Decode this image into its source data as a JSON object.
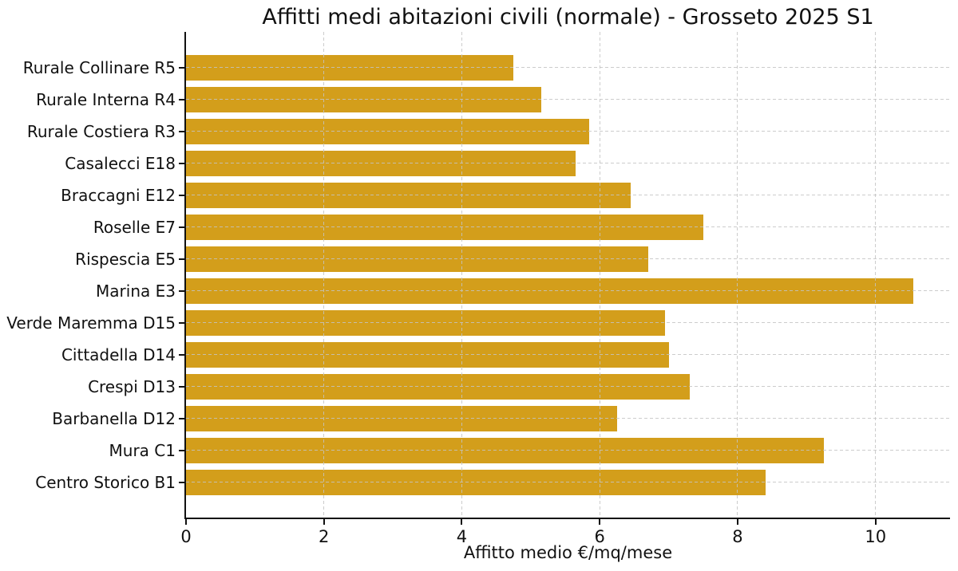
{
  "figure": {
    "background": "#ffffff"
  },
  "chart_data": {
    "type": "bar",
    "orientation": "horizontal",
    "title": "Affitti medi abitazioni civili (normale) - Grosseto 2025 S1",
    "xlabel": "Affitto medio €/mq/mese",
    "ylabel": "",
    "categories": [
      "Rurale Collinare R5",
      "Rurale Interna R4",
      "Rurale Costiera R3",
      "Casalecci E18",
      "Braccagni E12",
      "Roselle E7",
      "Rispescia E5",
      "Marina E3",
      "Verde Maremma D15",
      "Cittadella D14",
      "Crespi D13",
      "Barbanella D12",
      "Mura C1",
      "Centro Storico B1"
    ],
    "categories_order": "top-to-bottom",
    "values": [
      4.75,
      5.15,
      5.85,
      5.65,
      6.45,
      7.5,
      6.7,
      10.55,
      6.95,
      7.0,
      7.3,
      6.25,
      9.25,
      8.4
    ],
    "xticks": [
      0,
      2,
      4,
      6,
      8,
      10
    ],
    "xlim": [
      0,
      11.08
    ],
    "grid": {
      "show": true,
      "style": "dashed",
      "axes": "both",
      "color": "#c3c3c3",
      "over_bars": true
    },
    "legend": null,
    "bar_color": "#D39E1B",
    "axis_color": "#111111",
    "text_color": "#111111"
  }
}
